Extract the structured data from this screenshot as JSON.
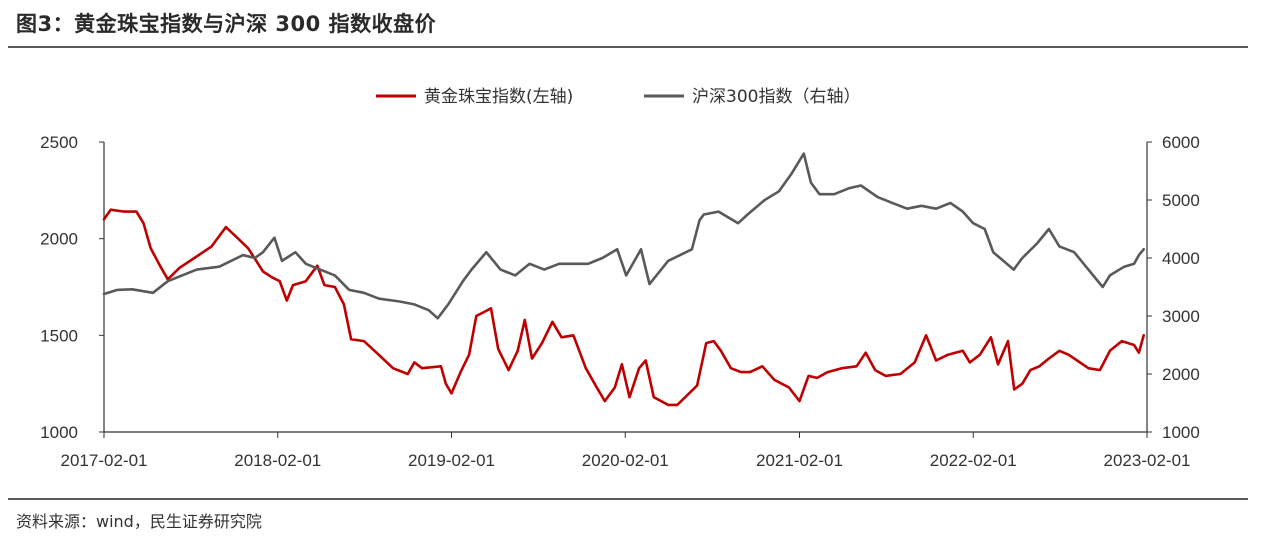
{
  "figure": {
    "title": "图3：黄金珠宝指数与沪深 300 指数收盘价",
    "source": "资料来源：wind，民生证券研究院"
  },
  "colors": {
    "gold_series": "#c00000",
    "csi300_series": "#595959",
    "axis": "#333333",
    "rule": "#5a5a5a"
  },
  "chart_data": {
    "type": "line",
    "title": "",
    "legend_position": "top-center",
    "grid": false,
    "x_axis": {
      "ticks": [
        "2017-02-01",
        "2018-02-01",
        "2019-02-01",
        "2020-02-01",
        "2021-02-01",
        "2022-02-01",
        "2023-02-01"
      ],
      "range": [
        "2017-02-01",
        "2023-02-01"
      ]
    },
    "y_left": {
      "ticks": [
        1000,
        1500,
        2000,
        2500
      ],
      "ylim": [
        1000,
        2500
      ]
    },
    "y_right": {
      "ticks": [
        1000,
        2000,
        3000,
        4000,
        5000,
        6000
      ],
      "ylim": [
        1000,
        6000
      ]
    },
    "series": [
      {
        "name": "黄金珠宝指数(左轴)",
        "axis": "left",
        "color": "#c00000",
        "points": [
          [
            "2017-02-01",
            2100
          ],
          [
            "2017-02-15",
            2150
          ],
          [
            "2017-03-15",
            2140
          ],
          [
            "2017-04-10",
            2140
          ],
          [
            "2017-04-25",
            2080
          ],
          [
            "2017-05-10",
            1950
          ],
          [
            "2017-06-01",
            1850
          ],
          [
            "2017-06-15",
            1790
          ],
          [
            "2017-07-10",
            1850
          ],
          [
            "2017-08-10",
            1900
          ],
          [
            "2017-09-15",
            1960
          ],
          [
            "2017-10-15",
            2060
          ],
          [
            "2017-11-10",
            2000
          ],
          [
            "2017-12-01",
            1950
          ],
          [
            "2018-01-01",
            1830
          ],
          [
            "2018-01-20",
            1800
          ],
          [
            "2018-02-05",
            1780
          ],
          [
            "2018-02-20",
            1680
          ],
          [
            "2018-03-05",
            1760
          ],
          [
            "2018-04-01",
            1780
          ],
          [
            "2018-04-25",
            1860
          ],
          [
            "2018-05-10",
            1760
          ],
          [
            "2018-06-01",
            1750
          ],
          [
            "2018-06-20",
            1660
          ],
          [
            "2018-07-05",
            1480
          ],
          [
            "2018-08-01",
            1470
          ],
          [
            "2018-09-01",
            1400
          ],
          [
            "2018-10-01",
            1330
          ],
          [
            "2018-11-01",
            1300
          ],
          [
            "2018-11-15",
            1360
          ],
          [
            "2018-12-01",
            1330
          ],
          [
            "2019-01-10",
            1340
          ],
          [
            "2019-01-20",
            1250
          ],
          [
            "2019-02-01",
            1200
          ],
          [
            "2019-02-20",
            1310
          ],
          [
            "2019-03-10",
            1400
          ],
          [
            "2019-03-25",
            1600
          ],
          [
            "2019-04-10",
            1620
          ],
          [
            "2019-04-25",
            1640
          ],
          [
            "2019-05-10",
            1430
          ],
          [
            "2019-06-01",
            1320
          ],
          [
            "2019-06-20",
            1420
          ],
          [
            "2019-07-05",
            1580
          ],
          [
            "2019-07-20",
            1380
          ],
          [
            "2019-08-10",
            1460
          ],
          [
            "2019-09-01",
            1570
          ],
          [
            "2019-09-20",
            1490
          ],
          [
            "2019-10-15",
            1500
          ],
          [
            "2019-11-10",
            1330
          ],
          [
            "2019-12-01",
            1240
          ],
          [
            "2019-12-20",
            1160
          ],
          [
            "2020-01-10",
            1230
          ],
          [
            "2020-01-25",
            1350
          ],
          [
            "2020-02-10",
            1180
          ],
          [
            "2020-03-01",
            1330
          ],
          [
            "2020-03-15",
            1370
          ],
          [
            "2020-04-01",
            1180
          ],
          [
            "2020-05-01",
            1140
          ],
          [
            "2020-05-20",
            1140
          ],
          [
            "2020-06-10",
            1190
          ],
          [
            "2020-07-01",
            1240
          ],
          [
            "2020-07-20",
            1460
          ],
          [
            "2020-08-05",
            1470
          ],
          [
            "2020-08-20",
            1420
          ],
          [
            "2020-09-10",
            1330
          ],
          [
            "2020-10-01",
            1310
          ],
          [
            "2020-10-20",
            1310
          ],
          [
            "2020-11-15",
            1340
          ],
          [
            "2020-12-10",
            1270
          ],
          [
            "2021-01-10",
            1230
          ],
          [
            "2021-02-01",
            1160
          ],
          [
            "2021-02-20",
            1290
          ],
          [
            "2021-03-10",
            1280
          ],
          [
            "2021-04-01",
            1310
          ],
          [
            "2021-05-01",
            1330
          ],
          [
            "2021-06-01",
            1340
          ],
          [
            "2021-06-20",
            1410
          ],
          [
            "2021-07-10",
            1320
          ],
          [
            "2021-08-01",
            1290
          ],
          [
            "2021-09-01",
            1300
          ],
          [
            "2021-10-01",
            1360
          ],
          [
            "2021-10-25",
            1500
          ],
          [
            "2021-11-15",
            1370
          ],
          [
            "2021-12-10",
            1400
          ],
          [
            "2022-01-10",
            1420
          ],
          [
            "2022-01-25",
            1360
          ],
          [
            "2022-02-15",
            1400
          ],
          [
            "2022-03-10",
            1490
          ],
          [
            "2022-03-25",
            1350
          ],
          [
            "2022-04-15",
            1470
          ],
          [
            "2022-04-28",
            1220
          ],
          [
            "2022-05-15",
            1250
          ],
          [
            "2022-06-01",
            1320
          ],
          [
            "2022-06-20",
            1340
          ],
          [
            "2022-07-10",
            1380
          ],
          [
            "2022-08-01",
            1420
          ],
          [
            "2022-08-20",
            1400
          ],
          [
            "2022-09-01",
            1380
          ],
          [
            "2022-10-01",
            1330
          ],
          [
            "2022-10-25",
            1320
          ],
          [
            "2022-11-15",
            1420
          ],
          [
            "2022-12-10",
            1470
          ],
          [
            "2023-01-05",
            1450
          ],
          [
            "2023-01-15",
            1410
          ],
          [
            "2023-01-25",
            1500
          ]
        ]
      },
      {
        "name": "沪深300指数（右轴）",
        "axis": "right",
        "color": "#595959",
        "points": [
          [
            "2017-02-01",
            3380
          ],
          [
            "2017-03-01",
            3450
          ],
          [
            "2017-04-01",
            3460
          ],
          [
            "2017-05-15",
            3400
          ],
          [
            "2017-06-15",
            3600
          ],
          [
            "2017-07-15",
            3700
          ],
          [
            "2017-08-15",
            3800
          ],
          [
            "2017-10-01",
            3850
          ],
          [
            "2017-11-20",
            4050
          ],
          [
            "2017-12-15",
            4000
          ],
          [
            "2018-01-01",
            4100
          ],
          [
            "2018-01-25",
            4350
          ],
          [
            "2018-02-10",
            3950
          ],
          [
            "2018-03-10",
            4100
          ],
          [
            "2018-04-01",
            3900
          ],
          [
            "2018-05-01",
            3800
          ],
          [
            "2018-06-01",
            3700
          ],
          [
            "2018-07-01",
            3450
          ],
          [
            "2018-08-01",
            3400
          ],
          [
            "2018-09-01",
            3300
          ],
          [
            "2018-10-15",
            3250
          ],
          [
            "2018-11-15",
            3200
          ],
          [
            "2018-12-15",
            3100
          ],
          [
            "2019-01-03",
            2960
          ],
          [
            "2019-01-25",
            3200
          ],
          [
            "2019-02-25",
            3600
          ],
          [
            "2019-03-15",
            3800
          ],
          [
            "2019-04-15",
            4100
          ],
          [
            "2019-05-15",
            3800
          ],
          [
            "2019-06-15",
            3700
          ],
          [
            "2019-07-15",
            3900
          ],
          [
            "2019-08-15",
            3800
          ],
          [
            "2019-09-15",
            3900
          ],
          [
            "2019-11-15",
            3900
          ],
          [
            "2019-12-15",
            4000
          ],
          [
            "2020-01-15",
            4150
          ],
          [
            "2020-02-03",
            3700
          ],
          [
            "2020-03-05",
            4150
          ],
          [
            "2020-03-23",
            3550
          ],
          [
            "2020-05-01",
            3950
          ],
          [
            "2020-06-20",
            4150
          ],
          [
            "2020-07-06",
            4650
          ],
          [
            "2020-07-15",
            4750
          ],
          [
            "2020-08-15",
            4800
          ],
          [
            "2020-09-25",
            4600
          ],
          [
            "2020-10-15",
            4750
          ],
          [
            "2020-11-20",
            5000
          ],
          [
            "2020-12-20",
            5150
          ],
          [
            "2021-01-15",
            5450
          ],
          [
            "2021-02-10",
            5800
          ],
          [
            "2021-02-25",
            5300
          ],
          [
            "2021-03-15",
            5100
          ],
          [
            "2021-04-15",
            5100
          ],
          [
            "2021-05-15",
            5200
          ],
          [
            "2021-06-10",
            5250
          ],
          [
            "2021-07-15",
            5050
          ],
          [
            "2021-08-15",
            4950
          ],
          [
            "2021-09-15",
            4850
          ],
          [
            "2021-10-15",
            4900
          ],
          [
            "2021-11-15",
            4850
          ],
          [
            "2021-12-15",
            4950
          ],
          [
            "2022-01-10",
            4800
          ],
          [
            "2022-02-01",
            4600
          ],
          [
            "2022-02-25",
            4500
          ],
          [
            "2022-03-15",
            4100
          ],
          [
            "2022-04-27",
            3800
          ],
          [
            "2022-05-15",
            4000
          ],
          [
            "2022-06-15",
            4250
          ],
          [
            "2022-07-10",
            4500
          ],
          [
            "2022-08-01",
            4200
          ],
          [
            "2022-09-01",
            4100
          ],
          [
            "2022-10-01",
            3800
          ],
          [
            "2022-10-31",
            3500
          ],
          [
            "2022-11-15",
            3700
          ],
          [
            "2022-12-15",
            3850
          ],
          [
            "2023-01-05",
            3900
          ],
          [
            "2023-01-15",
            4050
          ],
          [
            "2023-01-25",
            4150
          ]
        ]
      }
    ]
  }
}
